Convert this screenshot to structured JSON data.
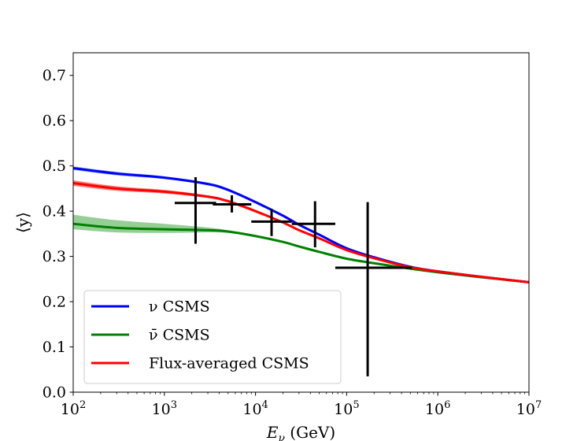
{
  "chart_data": {
    "type": "line",
    "xscale": "log",
    "xlim": [
      100,
      10000000
    ],
    "ylim": [
      0.0,
      0.75
    ],
    "xlabel": "E_ν (GeV)",
    "ylabel": "⟨y⟩",
    "x_ticks": [
      {
        "value": 100,
        "base": "10",
        "exp": "2"
      },
      {
        "value": 1000,
        "base": "10",
        "exp": "3"
      },
      {
        "value": 10000,
        "base": "10",
        "exp": "4"
      },
      {
        "value": 100000,
        "base": "10",
        "exp": "5"
      },
      {
        "value": 1000000,
        "base": "10",
        "exp": "6"
      },
      {
        "value": 10000000,
        "base": "10",
        "exp": "7"
      }
    ],
    "y_ticks": [
      {
        "value": 0.0,
        "label": "0.0"
      },
      {
        "value": 0.1,
        "label": "0.1"
      },
      {
        "value": 0.2,
        "label": "0.2"
      },
      {
        "value": 0.3,
        "label": "0.3"
      },
      {
        "value": 0.4,
        "label": "0.4"
      },
      {
        "value": 0.5,
        "label": "0.5"
      },
      {
        "value": 0.6,
        "label": "0.6"
      },
      {
        "value": 0.7,
        "label": "0.7"
      }
    ],
    "grid": false,
    "legend_position": "lower-left",
    "series": [
      {
        "name": "ν CSMS",
        "color": "#0000ff",
        "band_color": "#1f77b4",
        "x": [
          100,
          300,
          1000,
          3000,
          5000,
          10000,
          20000,
          30000,
          50000,
          100000,
          200000,
          500000,
          1000000,
          3000000,
          10000000
        ],
        "y": [
          0.495,
          0.483,
          0.474,
          0.46,
          0.447,
          0.42,
          0.39,
          0.37,
          0.348,
          0.318,
          0.298,
          0.277,
          0.267,
          0.255,
          0.243
        ],
        "band_upper": [
          0.499,
          0.487,
          0.477,
          0.463,
          0.45,
          0.423,
          0.392,
          0.372,
          0.35,
          0.32,
          0.3,
          0.278,
          0.268,
          0.256,
          0.244
        ],
        "band_lower": [
          0.491,
          0.479,
          0.471,
          0.457,
          0.444,
          0.417,
          0.388,
          0.368,
          0.346,
          0.316,
          0.296,
          0.276,
          0.266,
          0.254,
          0.242
        ]
      },
      {
        "name": "ν̄ CSMS",
        "color": "#008000",
        "band_color": "#2ca02c",
        "x": [
          100,
          300,
          1000,
          3000,
          5000,
          10000,
          20000,
          30000,
          50000,
          100000,
          200000,
          500000,
          1000000,
          3000000,
          10000000
        ],
        "y": [
          0.372,
          0.363,
          0.36,
          0.358,
          0.355,
          0.345,
          0.332,
          0.322,
          0.31,
          0.295,
          0.285,
          0.273,
          0.265,
          0.254,
          0.243
        ],
        "band_upper": [
          0.392,
          0.38,
          0.372,
          0.364,
          0.358,
          0.347,
          0.333,
          0.323,
          0.311,
          0.296,
          0.286,
          0.274,
          0.266,
          0.255,
          0.244
        ],
        "band_lower": [
          0.36,
          0.353,
          0.352,
          0.353,
          0.352,
          0.343,
          0.331,
          0.321,
          0.309,
          0.294,
          0.284,
          0.272,
          0.264,
          0.253,
          0.242
        ]
      },
      {
        "name": "Flux-averaged CSMS",
        "color": "#ff0000",
        "band_color": "#ff0000",
        "x": [
          100,
          300,
          1000,
          3000,
          5000,
          10000,
          20000,
          30000,
          50000,
          100000,
          200000,
          500000,
          1000000,
          3000000,
          10000000
        ],
        "y": [
          0.462,
          0.45,
          0.443,
          0.432,
          0.422,
          0.4,
          0.375,
          0.358,
          0.34,
          0.314,
          0.296,
          0.276,
          0.267,
          0.255,
          0.243
        ],
        "band_upper": [
          0.468,
          0.455,
          0.447,
          0.435,
          0.425,
          0.403,
          0.377,
          0.36,
          0.342,
          0.316,
          0.298,
          0.277,
          0.268,
          0.256,
          0.244
        ],
        "band_lower": [
          0.456,
          0.445,
          0.439,
          0.429,
          0.419,
          0.397,
          0.373,
          0.356,
          0.338,
          0.312,
          0.294,
          0.275,
          0.266,
          0.254,
          0.242
        ]
      }
    ],
    "data_points": [
      {
        "x": 2200,
        "y": 0.418,
        "xlo": 1300,
        "xhi": 3700,
        "ylo": 0.328,
        "yhi": 0.475
      },
      {
        "x": 5500,
        "y": 0.415,
        "xlo": 3400,
        "xhi": 9000,
        "ylo": 0.397,
        "yhi": 0.435
      },
      {
        "x": 15000,
        "y": 0.377,
        "xlo": 9000,
        "xhi": 25000,
        "ylo": 0.345,
        "yhi": 0.405
      },
      {
        "x": 45000,
        "y": 0.372,
        "xlo": 25000,
        "xhi": 75000,
        "ylo": 0.32,
        "yhi": 0.422
      },
      {
        "x": 170000,
        "y": 0.275,
        "xlo": 75000,
        "xhi": 520000,
        "ylo": 0.035,
        "yhi": 0.42
      }
    ]
  }
}
